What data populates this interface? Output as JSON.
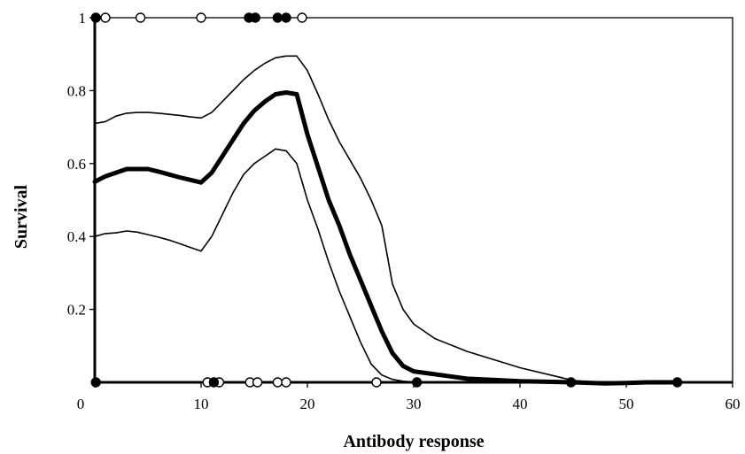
{
  "chart_data": {
    "type": "line",
    "title": "",
    "xlabel": "Antibody response",
    "ylabel": "Survival",
    "xlim": [
      0,
      60
    ],
    "ylim": [
      0,
      1
    ],
    "x_ticks": [
      0,
      10,
      20,
      30,
      40,
      50,
      60
    ],
    "y_ticks": [
      0.2,
      0.4,
      0.6,
      0.8,
      1
    ],
    "x_tick_labels": [
      "0",
      "10",
      "20",
      "30",
      "40",
      "50",
      "60"
    ],
    "y_tick_labels": [
      "0.2",
      "0.4",
      "0.6",
      "0.8",
      "1"
    ],
    "grid": false,
    "legend": "none",
    "series": [
      {
        "role": "estimate",
        "x": [
          0,
          1,
          2,
          3,
          4,
          5,
          6,
          7,
          8,
          9,
          10,
          11,
          12,
          13,
          14,
          15,
          16,
          17,
          18,
          19,
          20,
          21,
          22,
          23,
          24,
          25,
          26,
          27,
          28,
          29,
          30,
          35,
          40,
          45,
          48,
          50,
          52,
          55
        ],
        "y": [
          0.55,
          0.565,
          0.575,
          0.585,
          0.585,
          0.585,
          0.578,
          0.57,
          0.562,
          0.555,
          0.548,
          0.575,
          0.62,
          0.665,
          0.71,
          0.745,
          0.77,
          0.79,
          0.795,
          0.79,
          0.68,
          0.59,
          0.5,
          0.43,
          0.35,
          0.28,
          0.21,
          0.14,
          0.08,
          0.045,
          0.03,
          0.01,
          0.003,
          0,
          -0.003,
          -0.002,
          0,
          0
        ]
      },
      {
        "role": "upper-bound",
        "x": [
          0,
          1,
          2,
          3,
          4,
          5,
          6,
          7,
          8,
          9,
          10,
          11,
          12,
          13,
          14,
          15,
          16,
          17,
          18,
          19,
          20,
          21,
          22,
          23,
          24,
          25,
          26,
          27,
          28,
          29,
          30,
          32,
          35,
          40,
          45,
          48,
          50,
          52,
          55
        ],
        "y": [
          0.71,
          0.715,
          0.73,
          0.738,
          0.74,
          0.74,
          0.738,
          0.735,
          0.732,
          0.728,
          0.725,
          0.74,
          0.77,
          0.8,
          0.83,
          0.855,
          0.875,
          0.89,
          0.895,
          0.895,
          0.855,
          0.79,
          0.72,
          0.66,
          0.61,
          0.56,
          0.5,
          0.43,
          0.27,
          0.2,
          0.16,
          0.12,
          0.085,
          0.04,
          0.005,
          -0.002,
          -0.003,
          0,
          0
        ]
      },
      {
        "role": "lower-bound",
        "x": [
          0,
          1,
          2,
          3,
          4,
          5,
          6,
          7,
          8,
          9,
          10,
          11,
          12,
          13,
          14,
          15,
          16,
          17,
          18,
          19,
          20,
          21,
          22,
          23,
          24,
          25,
          26,
          27,
          28,
          29,
          30,
          35,
          40,
          45,
          48,
          50,
          52,
          55
        ],
        "y": [
          0.4,
          0.408,
          0.41,
          0.415,
          0.412,
          0.405,
          0.398,
          0.39,
          0.38,
          0.37,
          0.36,
          0.4,
          0.46,
          0.52,
          0.57,
          0.6,
          0.62,
          0.64,
          0.635,
          0.6,
          0.5,
          0.42,
          0.33,
          0.25,
          0.18,
          0.11,
          0.05,
          0.02,
          0.008,
          0.003,
          0.001,
          0,
          0,
          0,
          0,
          0,
          0,
          0
        ]
      }
    ],
    "observations": {
      "survived_at_1": {
        "filled": [
          0.1,
          14.5,
          15.1,
          17.2,
          18
        ],
        "open": [
          1,
          4.3,
          10,
          19.5
        ]
      },
      "died_at_0": {
        "filled": [
          0.1,
          11.2,
          30.3,
          44.8,
          54.8
        ],
        "open": [
          10.6,
          11.7,
          14.6,
          15.3,
          17.2,
          18,
          26.5
        ]
      }
    }
  }
}
